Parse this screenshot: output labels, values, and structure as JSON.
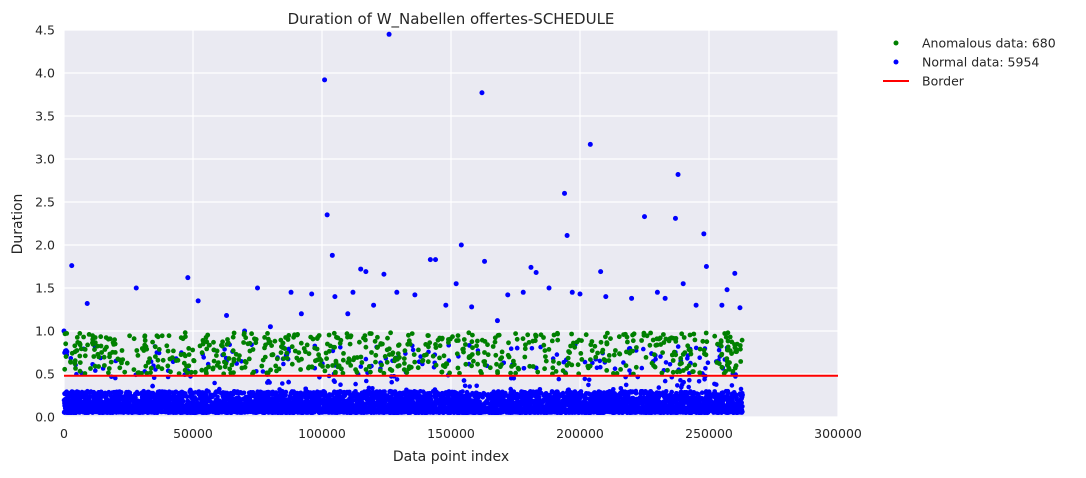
{
  "chart_data": {
    "type": "scatter",
    "title": "Duration of W_Nabellen offertes-SCHEDULE",
    "xlabel": "Data point index",
    "ylabel": "Duration",
    "xlim": [
      0,
      300000
    ],
    "ylim": [
      0,
      4.5
    ],
    "x_ticks": [
      0,
      50000,
      100000,
      150000,
      200000,
      250000,
      300000
    ],
    "x_tick_labels": [
      "0",
      "50000",
      "100000",
      "150000",
      "200000",
      "250000",
      "300000"
    ],
    "y_ticks": [
      0.0,
      0.5,
      1.0,
      1.5,
      2.0,
      2.5,
      3.0,
      3.5,
      4.0,
      4.5
    ],
    "y_tick_labels": [
      "0.0",
      "0.5",
      "1.0",
      "1.5",
      "2.0",
      "2.5",
      "3.0",
      "3.5",
      "4.0",
      "4.5"
    ],
    "grid": true,
    "legend_position": "outside-top-right",
    "border": {
      "name": "Border",
      "y": 0.48,
      "color": "#ff0000"
    },
    "series": [
      {
        "name": "Anomalous data: 680",
        "color": "#008000",
        "count": 680,
        "band": [
          0.5,
          0.98
        ],
        "x_range": [
          0,
          263000
        ]
      },
      {
        "name": "Normal data: 5954",
        "color": "#0000ff",
        "count": 5954,
        "band": [
          0.05,
          0.3
        ],
        "x_range": [
          0,
          263000
        ],
        "notable_points": [
          [
            0,
            1.0
          ],
          [
            3000,
            1.76
          ],
          [
            9000,
            1.32
          ],
          [
            28000,
            1.5
          ],
          [
            48000,
            1.62
          ],
          [
            52000,
            1.35
          ],
          [
            75000,
            1.5
          ],
          [
            88000,
            1.45
          ],
          [
            96000,
            1.43
          ],
          [
            101000,
            3.92
          ],
          [
            102000,
            2.35
          ],
          [
            104000,
            1.88
          ],
          [
            105000,
            1.4
          ],
          [
            115000,
            1.72
          ],
          [
            117000,
            1.69
          ],
          [
            124000,
            1.66
          ],
          [
            126000,
            4.45
          ],
          [
            129000,
            1.45
          ],
          [
            142000,
            1.83
          ],
          [
            144000,
            1.83
          ],
          [
            152000,
            1.55
          ],
          [
            154000,
            2.0
          ],
          [
            162000,
            3.77
          ],
          [
            163000,
            1.81
          ],
          [
            172000,
            1.42
          ],
          [
            181000,
            1.74
          ],
          [
            183000,
            1.68
          ],
          [
            194000,
            2.6
          ],
          [
            195000,
            2.11
          ],
          [
            197000,
            1.45
          ],
          [
            204000,
            3.17
          ],
          [
            208000,
            1.69
          ],
          [
            225000,
            2.33
          ],
          [
            230000,
            1.45
          ],
          [
            237000,
            2.31
          ],
          [
            238000,
            2.82
          ],
          [
            240000,
            1.55
          ],
          [
            248000,
            2.13
          ],
          [
            249000,
            1.75
          ],
          [
            257000,
            1.48
          ],
          [
            260000,
            1.67
          ],
          [
            262000,
            1.27
          ],
          [
            200000,
            1.43
          ],
          [
            220000,
            1.38
          ],
          [
            233000,
            1.38
          ],
          [
            255000,
            1.3
          ],
          [
            112000,
            1.45
          ],
          [
            136000,
            1.42
          ],
          [
            178000,
            1.45
          ],
          [
            63000,
            1.18
          ],
          [
            70000,
            1.0
          ],
          [
            80000,
            1.05
          ],
          [
            92000,
            1.2
          ],
          [
            110000,
            1.2
          ],
          [
            120000,
            1.3
          ],
          [
            148000,
            1.3
          ],
          [
            158000,
            1.28
          ],
          [
            168000,
            1.12
          ],
          [
            188000,
            1.5
          ],
          [
            210000,
            1.4
          ],
          [
            245000,
            1.3
          ]
        ]
      }
    ]
  }
}
